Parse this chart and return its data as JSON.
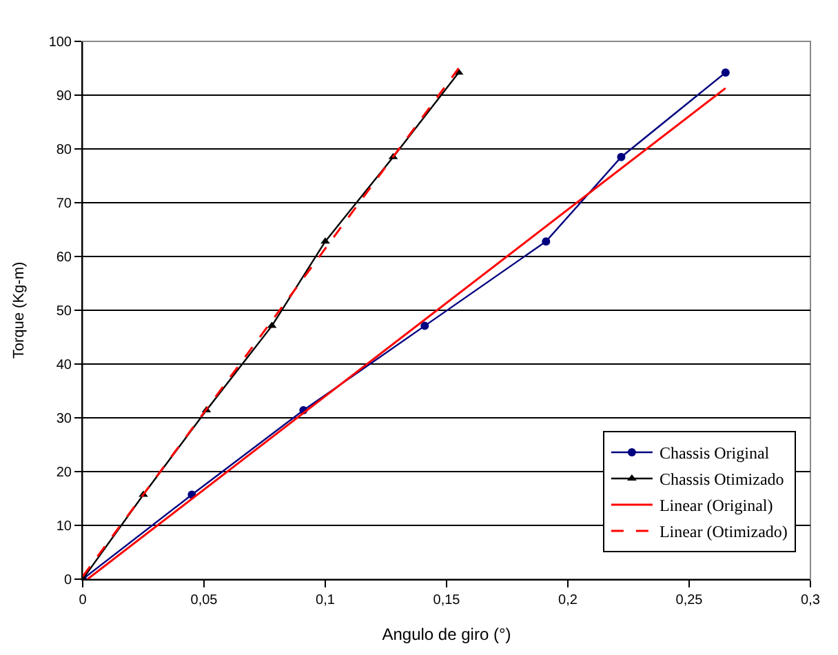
{
  "chart_data": {
    "type": "line",
    "xlabel": "Angulo de giro (°)",
    "ylabel": "Torque (Kg-m)",
    "xlim": [
      0,
      0.3
    ],
    "xticks": [
      0,
      {
        "value": 0.05,
        "label": "0,05"
      },
      {
        "value": 0.1,
        "label": "0,1"
      },
      {
        "value": 0.15,
        "label": "0,15"
      },
      {
        "value": 0.2,
        "label": "0,2"
      },
      {
        "value": 0.25,
        "label": "0,25"
      },
      {
        "value": 0.3,
        "label": "0,3"
      }
    ],
    "ylim": [
      0,
      100
    ],
    "yticks": [
      0,
      10,
      20,
      30,
      40,
      50,
      60,
      70,
      80,
      90,
      100
    ],
    "grid": "y",
    "legend": "bottom right",
    "series": [
      {
        "name": "Chassis Original",
        "color": "#000080",
        "marker": "circle",
        "line_style": "solid",
        "x": [
          0,
          0.045,
          0.091,
          0.141,
          0.191,
          0.222,
          0.265
        ],
        "values": [
          0,
          15.7,
          31.4,
          47.1,
          62.8,
          78.5,
          94.2
        ]
      },
      {
        "name": "Chassis Otimizado",
        "color": "#000000",
        "marker": "triangle",
        "line_style": "solid",
        "x": [
          0,
          0.025,
          0.051,
          0.078,
          0.1,
          0.128,
          0.155
        ],
        "values": [
          0,
          15.7,
          31.4,
          47.1,
          62.8,
          78.5,
          94.2
        ]
      },
      {
        "name": "Linear (Original)",
        "color": "#ff0000",
        "marker": "none",
        "line_style": "solid",
        "x": [
          0.002,
          0.265
        ],
        "values": [
          0,
          91.3
        ]
      },
      {
        "name": "Linear (Otimizado)",
        "color": "#ff0000",
        "marker": "none",
        "line_style": "dashed",
        "x": [
          0,
          0.155
        ],
        "values": [
          0.5,
          95
        ]
      }
    ]
  }
}
